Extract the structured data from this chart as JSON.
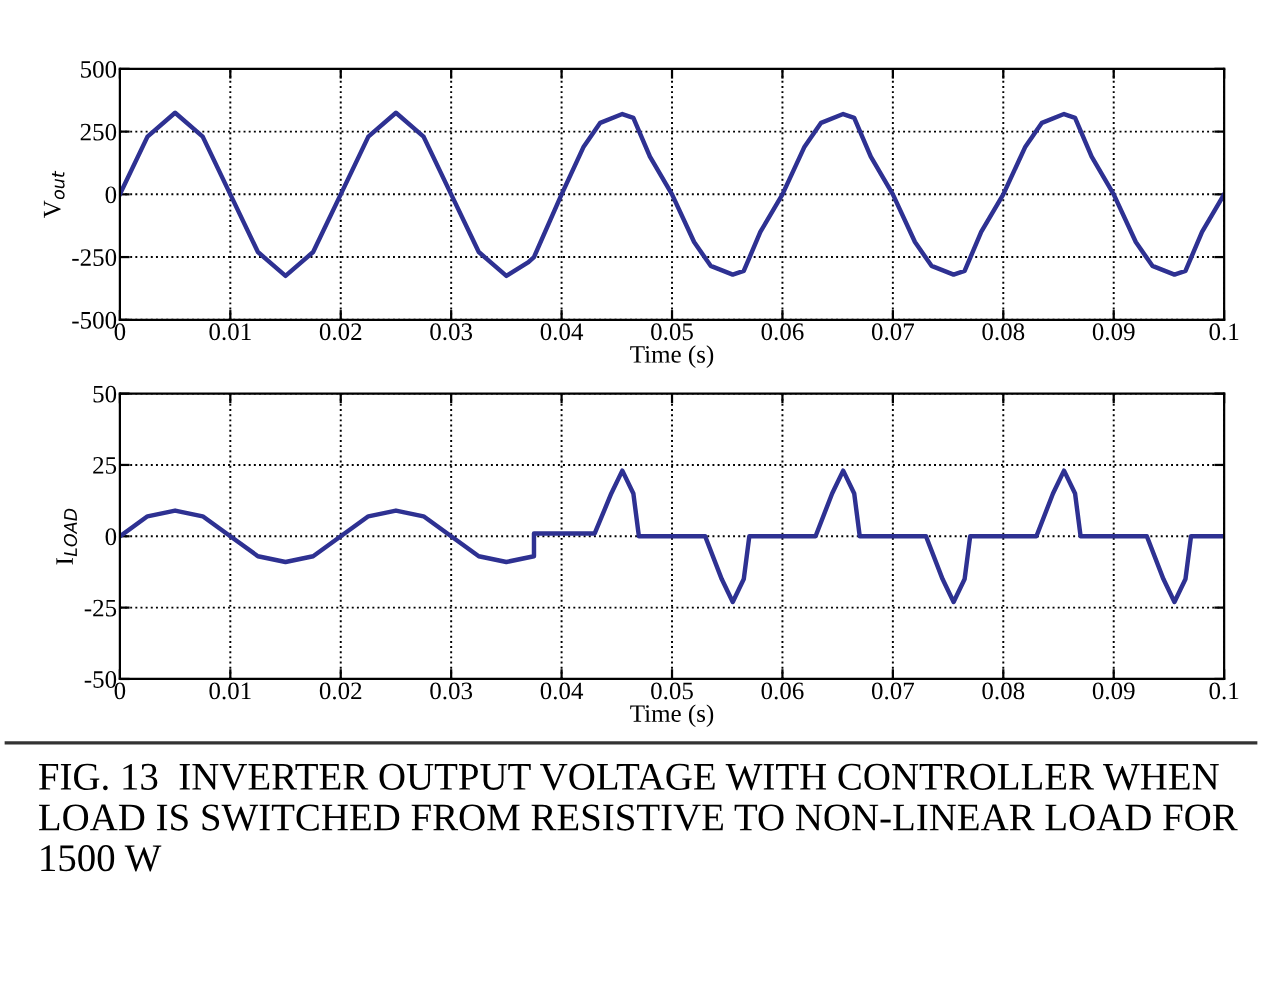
{
  "chart_data": [
    {
      "type": "line",
      "xlabel": "Time (s)",
      "ylabel": "V$_{out}$",
      "xlim": [
        0,
        0.1
      ],
      "ylim": [
        -500,
        500
      ],
      "xticks": [
        0,
        0.01,
        0.02,
        0.03,
        0.04,
        0.05,
        0.06,
        0.07,
        0.08,
        0.09,
        0.1
      ],
      "yticks": [
        -500,
        -250,
        0,
        250,
        500
      ],
      "grid": true,
      "series": [
        {
          "color": "#2e3192",
          "x": [
            0,
            0.0025,
            0.005,
            0.0075,
            0.01,
            0.0125,
            0.015,
            0.0175,
            0.02,
            0.0225,
            0.025,
            0.0275,
            0.03,
            0.0325,
            0.035,
            0.037,
            0.0375,
            0.04,
            0.042,
            0.0435,
            0.0455,
            0.0465,
            0.048,
            0.05,
            0.052,
            0.0535,
            0.0555,
            0.0565,
            0.058,
            0.06,
            0.062,
            0.0635,
            0.0655,
            0.0665,
            0.068,
            0.07,
            0.072,
            0.0735,
            0.0755,
            0.0765,
            0.078,
            0.08,
            0.082,
            0.0835,
            0.0855,
            0.0865,
            0.088,
            0.09,
            0.092,
            0.0935,
            0.0955,
            0.0965,
            0.098,
            0.1
          ],
          "values": [
            0,
            230,
            325,
            230,
            0,
            -230,
            -325,
            -230,
            0,
            230,
            325,
            230,
            0,
            -230,
            -325,
            -270,
            -250,
            0,
            190,
            285,
            320,
            305,
            150,
            0,
            -190,
            -285,
            -320,
            -305,
            -150,
            0,
            190,
            285,
            320,
            305,
            150,
            0,
            -190,
            -285,
            -320,
            -305,
            -150,
            0,
            190,
            285,
            320,
            305,
            150,
            0,
            -190,
            -285,
            -320,
            -305,
            -150,
            0
          ]
        }
      ]
    },
    {
      "type": "line",
      "xlabel": "Time (s)",
      "ylabel": "I$_{LOAD}$",
      "xlim": [
        0,
        0.1
      ],
      "ylim": [
        -50,
        50
      ],
      "xticks": [
        0,
        0.01,
        0.02,
        0.03,
        0.04,
        0.05,
        0.06,
        0.07,
        0.08,
        0.09,
        0.1
      ],
      "yticks": [
        -50,
        -25,
        0,
        25,
        50
      ],
      "grid": true,
      "series": [
        {
          "color": "#2e3192",
          "x": [
            0,
            0.0025,
            0.005,
            0.0075,
            0.01,
            0.0125,
            0.015,
            0.0175,
            0.02,
            0.0225,
            0.025,
            0.0275,
            0.03,
            0.0325,
            0.035,
            0.0375,
            0.0375,
            0.043,
            0.0445,
            0.0455,
            0.0465,
            0.047,
            0.053,
            0.0545,
            0.0555,
            0.0565,
            0.057,
            0.063,
            0.0645,
            0.0655,
            0.0665,
            0.067,
            0.073,
            0.0745,
            0.0755,
            0.0765,
            0.077,
            0.083,
            0.0845,
            0.0855,
            0.0865,
            0.087,
            0.093,
            0.0945,
            0.0955,
            0.0965,
            0.097,
            0.1
          ],
          "values": [
            0,
            7,
            9,
            7,
            0,
            -7,
            -9,
            -7,
            0,
            7,
            9,
            7,
            0,
            -7,
            -9,
            -7,
            1,
            1,
            15,
            23,
            15,
            0,
            0,
            -15,
            -23,
            -15,
            0,
            0,
            15,
            23,
            15,
            0,
            0,
            -15,
            -23,
            -15,
            0,
            0,
            15,
            23,
            15,
            0,
            0,
            -15,
            -23,
            -15,
            0,
            0
          ]
        }
      ],
      "annotations": [
        "FIG. 13  INVERTER OUTPUT VOLTAGE WITH CONTROLLER WHEN LOAD IS SWITCHED FROM RESISTIVE TO NON-LINEAR LOAD FOR 1500 W"
      ]
    }
  ]
}
